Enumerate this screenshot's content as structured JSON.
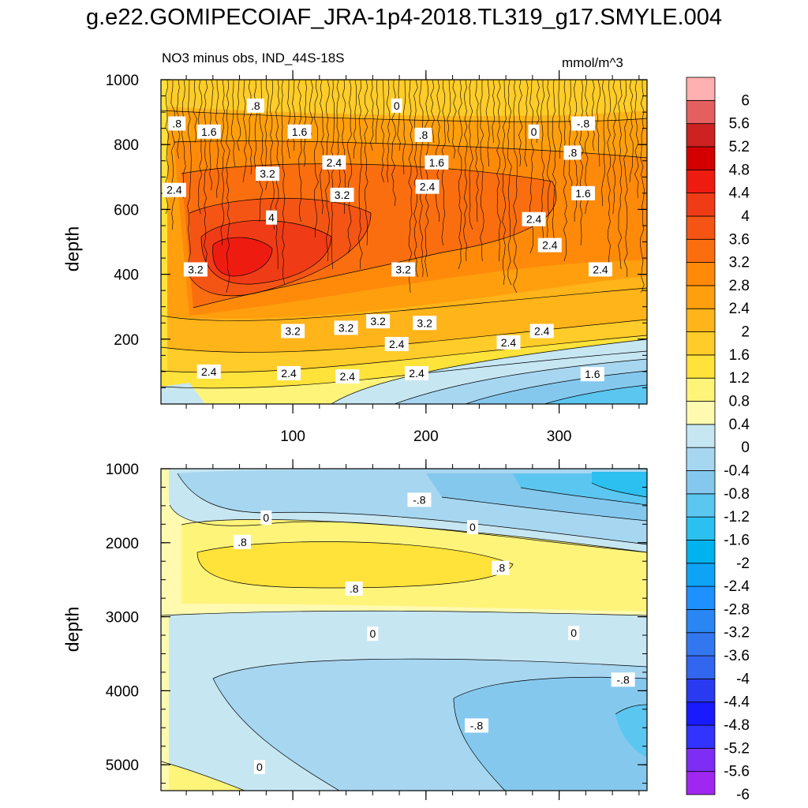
{
  "page": {
    "title": "g.e22.GOMIPECOIAF_JRA-1p4-2018.TL319_g17.SMYLE.004"
  },
  "colors": {
    "levels": [
      "#a027f0",
      "#7d2ef2",
      "#3333ff",
      "#1a1aff",
      "#2a3af0",
      "#3366ee",
      "#3377f0",
      "#2a86f2",
      "#1e90ff",
      "#0fa3f5",
      "#00b2ee",
      "#2bc0f0",
      "#5bc6f0",
      "#85c8ee",
      "#a7d6f0",
      "#c6e6f2",
      "#fffab0",
      "#fff47a",
      "#ffe23a",
      "#ffcc29",
      "#ffb41a",
      "#ff9f0e",
      "#ff8a0a",
      "#fb6e0f",
      "#f55514",
      "#f03c16",
      "#ee1c10",
      "#d40000",
      "#cc2222",
      "#e46060",
      "#ffb0b0"
    ]
  },
  "chart_data": [
    {
      "type": "contour",
      "title": "NO3 minus obs, IND_44S-18S",
      "units": "mmol/m^3",
      "ylabel": "depth",
      "xlabel": "",
      "xlim": [
        1,
        366
      ],
      "ylim": [
        1000,
        0
      ],
      "x_ticks": [
        100,
        200,
        300
      ],
      "x_tick_labels": [
        "100",
        "200",
        "300"
      ],
      "y_ticks": [
        200,
        400,
        600,
        800,
        1000
      ],
      "y_tick_labels": [
        "200",
        "400",
        "600",
        "800",
        "1000"
      ],
      "contour_labels": [
        {
          "text": "2.4",
          "x": 37,
          "y": 100
        },
        {
          "text": "2.4",
          "x": 97,
          "y": 95
        },
        {
          "text": "2.4",
          "x": 141,
          "y": 85
        },
        {
          "text": "2.4",
          "x": 193,
          "y": 95
        },
        {
          "text": "1.6",
          "x": 325,
          "y": 92
        },
        {
          "text": "2.4",
          "x": 178,
          "y": 185
        },
        {
          "text": "2.4",
          "x": 262,
          "y": 190
        },
        {
          "text": "3.2",
          "x": 100,
          "y": 225
        },
        {
          "text": "3.2",
          "x": 140,
          "y": 235
        },
        {
          "text": "3.2",
          "x": 164,
          "y": 255
        },
        {
          "text": "3.2",
          "x": 199,
          "y": 250
        },
        {
          "text": "2.4",
          "x": 287,
          "y": 225
        },
        {
          "text": "3.2",
          "x": 27,
          "y": 415
        },
        {
          "text": "3.2",
          "x": 183,
          "y": 415
        },
        {
          "text": "2.4",
          "x": 331,
          "y": 415
        },
        {
          "text": "2.4",
          "x": 293,
          "y": 490
        },
        {
          "text": "4",
          "x": 84,
          "y": 575
        },
        {
          "text": "2.4",
          "x": 281,
          "y": 570
        },
        {
          "text": "3.2",
          "x": 137,
          "y": 645
        },
        {
          "text": "2.4",
          "x": 11,
          "y": 660
        },
        {
          "text": "1.6",
          "x": 318,
          "y": 650
        },
        {
          "text": "2.4",
          "x": 201,
          "y": 670
        },
        {
          "text": "3.2",
          "x": 81,
          "y": 710
        },
        {
          "text": "2.4",
          "x": 131,
          "y": 745
        },
        {
          "text": "1.6",
          "x": 208,
          "y": 745
        },
        {
          "text": ".8",
          "x": 310,
          "y": 775
        },
        {
          "text": "1.6",
          "x": 37,
          "y": 840
        },
        {
          "text": "1.6",
          "x": 105,
          "y": 840
        },
        {
          "text": ".8",
          "x": 198,
          "y": 830
        },
        {
          "text": "0",
          "x": 281,
          "y": 840
        },
        {
          "text": ".8",
          "x": 13,
          "y": 865
        },
        {
          "text": "-.8",
          "x": 318,
          "y": 865
        },
        {
          "text": ".8",
          "x": 72,
          "y": 920
        },
        {
          "text": "0",
          "x": 178,
          "y": 920
        }
      ]
    },
    {
      "type": "contour",
      "title": "",
      "units": "",
      "ylabel": "depth",
      "xlabel": "",
      "xlim": [
        1,
        366
      ],
      "ylim": [
        1000,
        5350
      ],
      "x_ticks": [
        100,
        200,
        300
      ],
      "x_tick_labels": [
        "",
        "",
        ""
      ],
      "y_ticks": [
        1000,
        2000,
        3000,
        4000,
        5000
      ],
      "y_tick_labels": [
        "1000",
        "2000",
        "3000",
        "4000",
        "5000"
      ],
      "contour_labels": [
        {
          "text": "-.8",
          "x": 195,
          "y": 1420
        },
        {
          "text": "0",
          "x": 80,
          "y": 1660
        },
        {
          "text": "0",
          "x": 235,
          "y": 1790
        },
        {
          "text": ".8",
          "x": 62,
          "y": 1990
        },
        {
          "text": ".8",
          "x": 256,
          "y": 2340
        },
        {
          "text": ".8",
          "x": 146,
          "y": 2620
        },
        {
          "text": "0",
          "x": 160,
          "y": 3230
        },
        {
          "text": "0",
          "x": 311,
          "y": 3220
        },
        {
          "text": "-.8",
          "x": 348,
          "y": 3850
        },
        {
          "text": "-.8",
          "x": 238,
          "y": 4470
        },
        {
          "text": "0",
          "x": 75,
          "y": 5030
        }
      ]
    },
    {
      "type": "colorbar",
      "labels": [
        "6",
        "5.6",
        "5.2",
        "4.8",
        "4.4",
        "4",
        "3.6",
        "3.2",
        "2.8",
        "2.4",
        "2",
        "1.6",
        "1.2",
        "0.8",
        "0.4",
        "0",
        "-0.4",
        "-0.8",
        "-1.2",
        "-1.6",
        "-2",
        "-2.4",
        "-2.8",
        "-3.2",
        "-3.6",
        "-4",
        "-4.4",
        "-4.8",
        "-5.2",
        "-5.6",
        "-6"
      ]
    }
  ]
}
